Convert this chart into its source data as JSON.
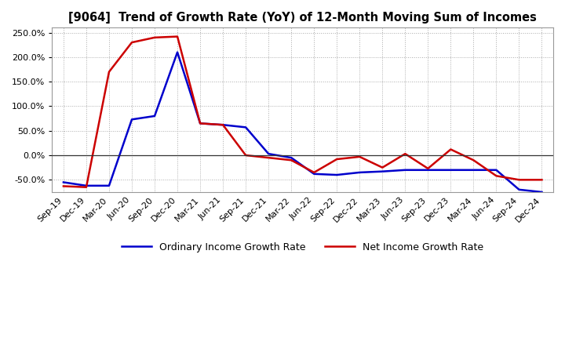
{
  "title": "[9064]  Trend of Growth Rate (YoY) of 12-Month Moving Sum of Incomes",
  "x_labels": [
    "Sep-19",
    "Dec-19",
    "Mar-20",
    "Jun-20",
    "Sep-20",
    "Dec-20",
    "Mar-21",
    "Jun-21",
    "Sep-21",
    "Dec-21",
    "Mar-22",
    "Jun-22",
    "Sep-22",
    "Dec-22",
    "Mar-23",
    "Jun-23",
    "Sep-23",
    "Dec-23",
    "Mar-24",
    "Jun-24",
    "Sep-24",
    "Dec-24"
  ],
  "ordinary_income": [
    -55,
    -62,
    -62,
    73,
    80,
    210,
    65,
    62,
    57,
    3,
    -5,
    -38,
    -40,
    -35,
    -33,
    -30,
    -30,
    -30,
    -30,
    -30,
    -70,
    -75
  ],
  "net_income": [
    -63,
    -65,
    170,
    230,
    240,
    242,
    65,
    62,
    0,
    -5,
    -10,
    -35,
    -8,
    -3,
    -25,
    3,
    -27,
    12,
    -10,
    -42,
    -50,
    -50
  ],
  "ylim": [
    -75,
    260
  ],
  "yticks": [
    -50,
    0,
    50,
    100,
    150,
    200,
    250
  ],
  "ordinary_color": "#0000cc",
  "net_color": "#cc0000",
  "background_color": "#ffffff",
  "grid_color": "#aaaaaa",
  "legend_ordinary": "Ordinary Income Growth Rate",
  "legend_net": "Net Income Growth Rate",
  "linewidth": 1.8
}
